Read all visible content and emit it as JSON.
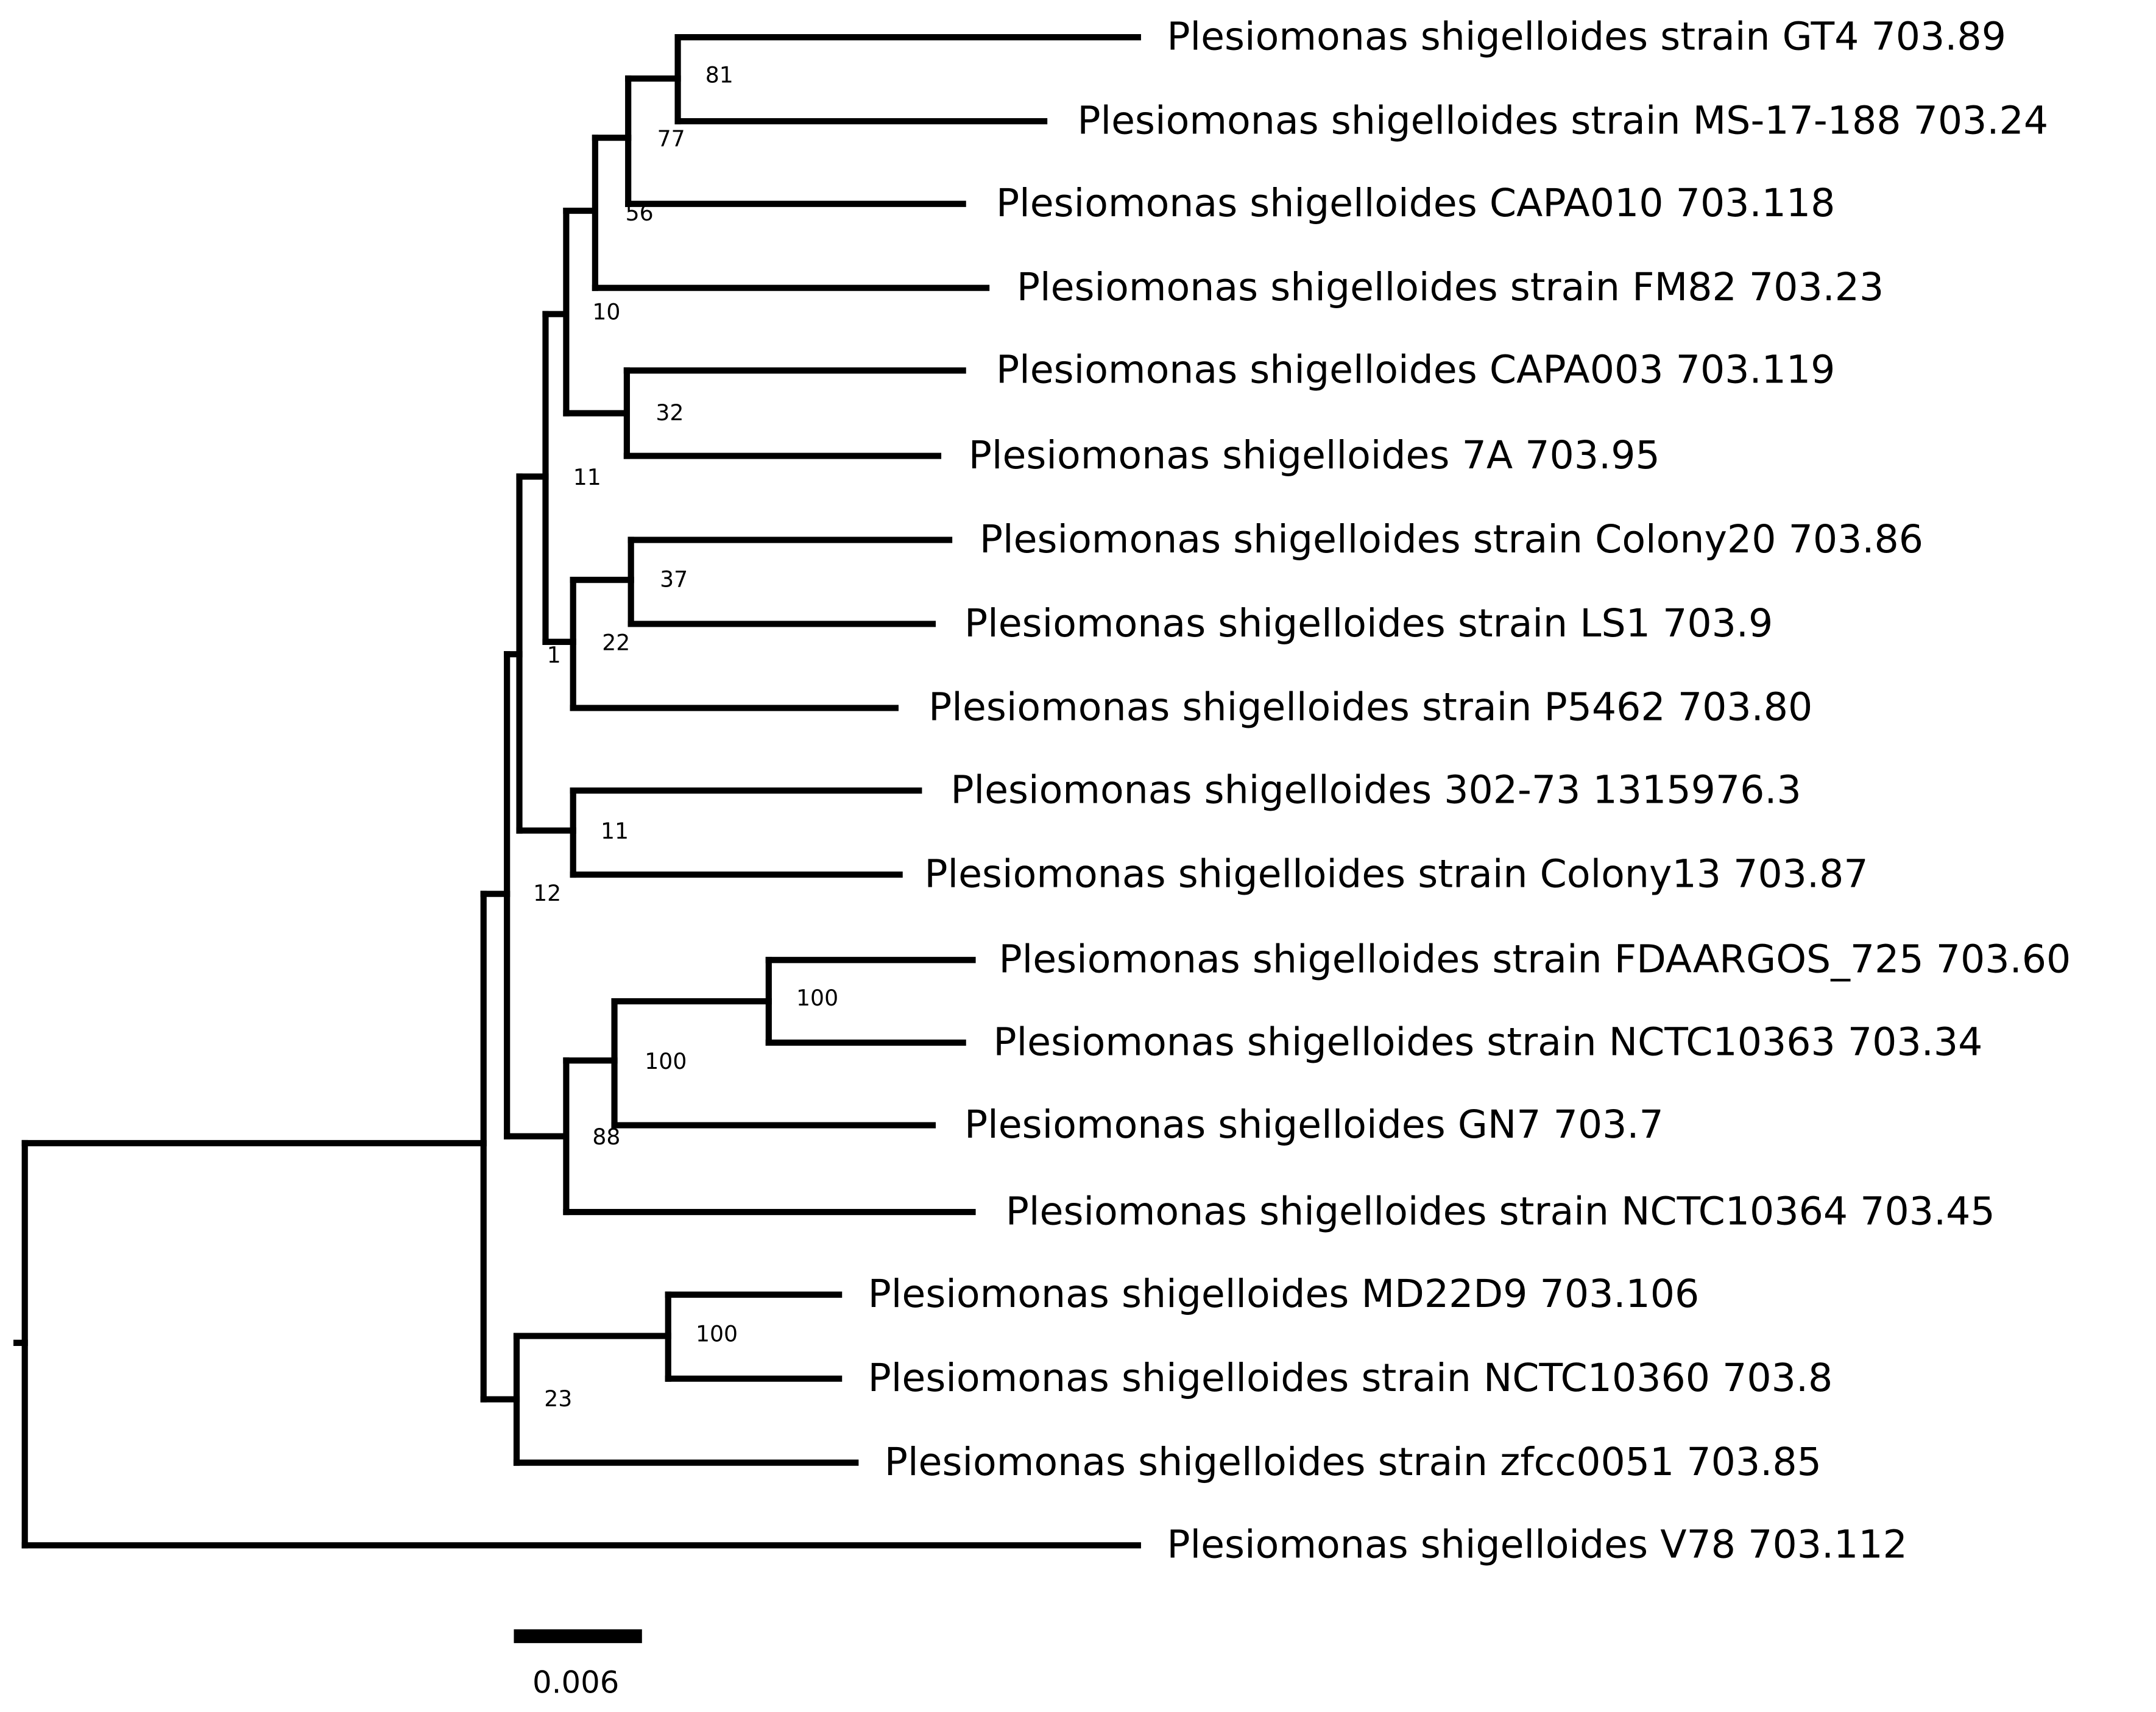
{
  "tree": {
    "leaves": [
      {
        "label": "Plesiomonas shigelloides strain GT4 703.89"
      },
      {
        "label": "Plesiomonas shigelloides strain MS-17-188 703.24"
      },
      {
        "label": "Plesiomonas shigelloides CAPA010 703.118"
      },
      {
        "label": "Plesiomonas shigelloides strain FM82 703.23"
      },
      {
        "label": "Plesiomonas shigelloides CAPA003 703.119"
      },
      {
        "label": "Plesiomonas shigelloides 7A 703.95"
      },
      {
        "label": "Plesiomonas shigelloides strain Colony20 703.86"
      },
      {
        "label": "Plesiomonas shigelloides strain LS1 703.9"
      },
      {
        "label": "Plesiomonas shigelloides strain P5462 703.80"
      },
      {
        "label": "Plesiomonas shigelloides 302-73 1315976.3"
      },
      {
        "label": "Plesiomonas shigelloides strain Colony13 703.87"
      },
      {
        "label": "Plesiomonas shigelloides strain FDAARGOS_725 703.60"
      },
      {
        "label": "Plesiomonas shigelloides strain NCTC10363 703.34"
      },
      {
        "label": "Plesiomonas shigelloides GN7 703.7"
      },
      {
        "label": "Plesiomonas shigelloides strain NCTC10364 703.45"
      },
      {
        "label": "Plesiomonas shigelloides MD22D9 703.106"
      },
      {
        "label": "Plesiomonas shigelloides strain NCTC10360 703.8"
      },
      {
        "label": "Plesiomonas shigelloides strain zfcc0051 703.85"
      },
      {
        "label": "Plesiomonas shigelloides V78 703.112"
      }
    ],
    "support_values": [
      "81",
      "77",
      "56",
      "10",
      "32",
      "11",
      "37",
      "22",
      "1",
      "11",
      "12",
      "100",
      "100",
      "88",
      "100",
      "23"
    ],
    "scale_bar": {
      "label": "0.006"
    }
  }
}
